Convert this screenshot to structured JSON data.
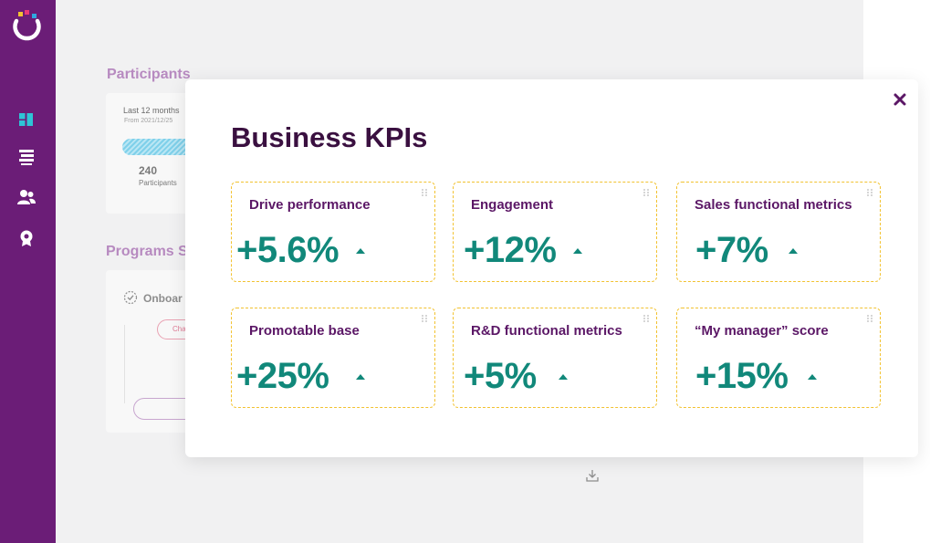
{
  "background": {
    "participants_title": "Participants",
    "period_label": "Last 12 months",
    "period_range": "From 2021/12/25",
    "participants_count": "240",
    "participants_label": "Participants",
    "programs_title": "Programs St",
    "program_name": "Onboar",
    "chip_label": "Cha"
  },
  "modal": {
    "title": "Business KPIs",
    "kpis": [
      {
        "label": "Drive performance",
        "value": "+5.6%"
      },
      {
        "label": "Engagement",
        "value": "+12%"
      },
      {
        "label": "Sales functional metrics",
        "value": "+7%"
      },
      {
        "label": "Promotable base",
        "value": "+25%"
      },
      {
        "label": "R&D functional metrics",
        "value": "+5%"
      },
      {
        "label": "“My manager” score",
        "value": "+15%"
      }
    ]
  },
  "colors": {
    "sidebar": "#6b1d77",
    "accent_teal": "#11887a",
    "title_purple": "#3a1040",
    "card_border": "#f2c230"
  },
  "icons": {
    "close": "close-x-icon",
    "download": "download-icon",
    "drag": "drag-handle-icon",
    "trend": "arrow-up-icon"
  }
}
